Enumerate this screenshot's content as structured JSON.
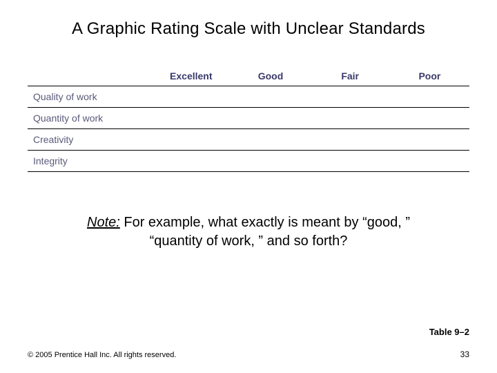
{
  "title": "A Graphic Rating Scale with Unclear Standards",
  "table": {
    "columns": [
      "",
      "Excellent",
      "Good",
      "Fair",
      "Poor"
    ],
    "rows": [
      {
        "label": "Quality of work"
      },
      {
        "label": "Quantity of work"
      },
      {
        "label": "Creativity"
      },
      {
        "label": "Integrity"
      }
    ],
    "header_color": "#3a3a6a",
    "row_label_color": "#5a5a7a",
    "border_color": "#000000",
    "header_fontsize": 14,
    "row_fontsize": 14,
    "col_widths_pct": [
      28,
      18,
      18,
      18,
      18
    ]
  },
  "note": {
    "lead": "Note:",
    "body": " For example, what exactly is meant by “good, ” “quantity of work, ” and so forth?"
  },
  "table_label": "Table 9–2",
  "copyright": "© 2005 Prentice Hall Inc. All rights reserved.",
  "page_number": "33",
  "colors": {
    "background": "#ffffff",
    "text": "#000000"
  },
  "typography": {
    "title_fontsize": 24,
    "note_fontsize": 20,
    "footer_fontsize": 11,
    "table_label_fontsize": 13
  }
}
